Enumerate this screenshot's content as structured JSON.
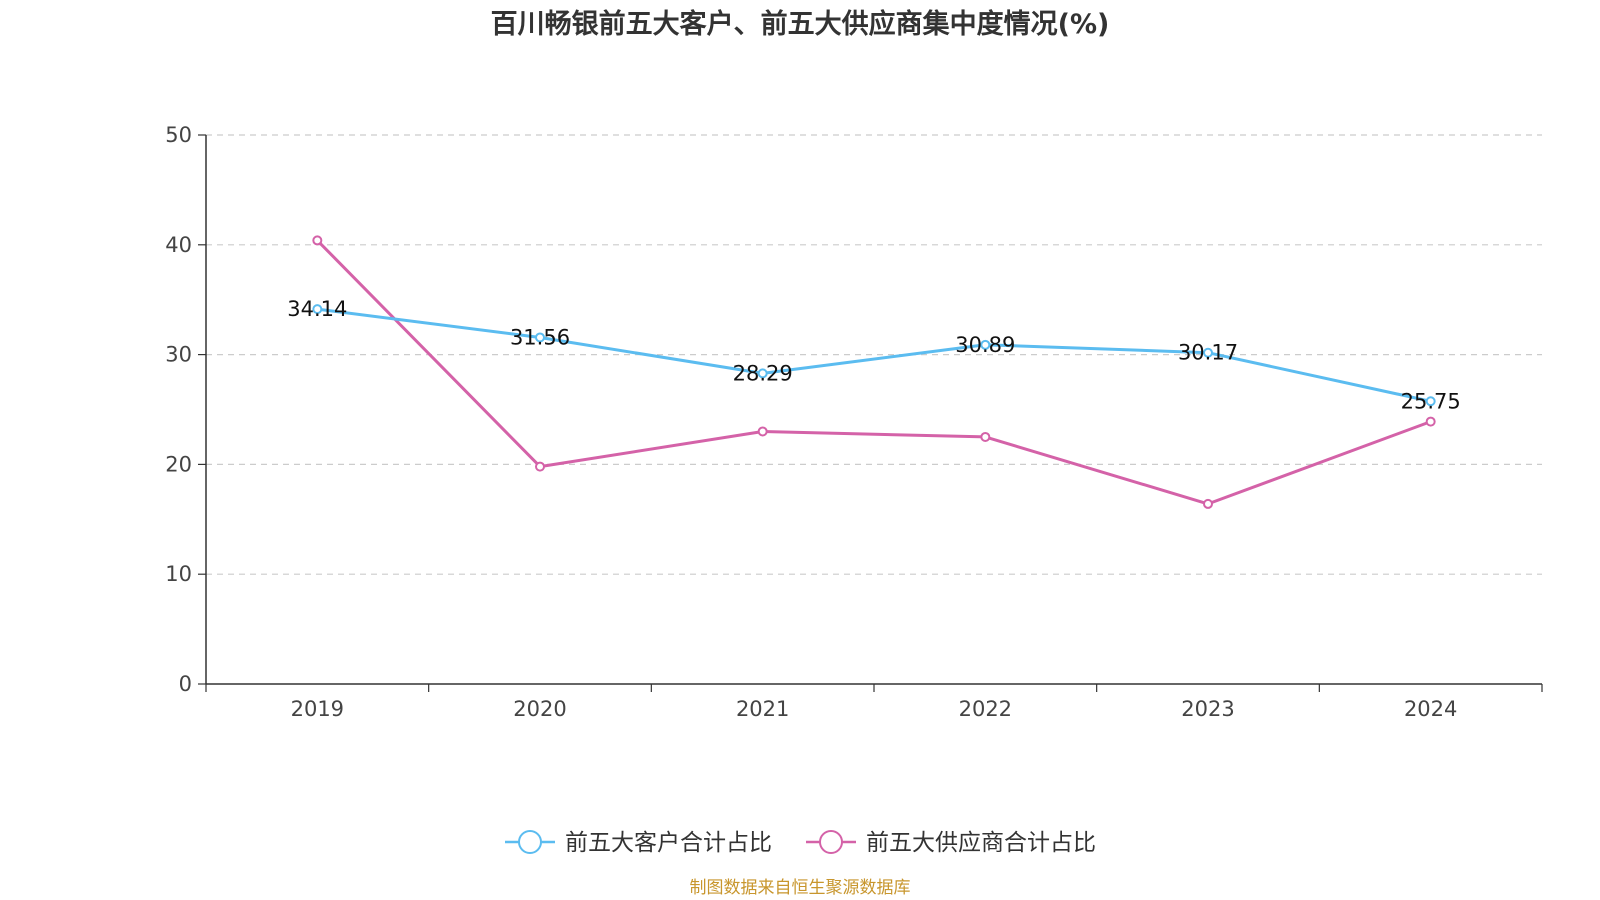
{
  "chart_data": {
    "type": "line",
    "title": "百川畅银前五大客户、前五大供应商集中度情况(%)",
    "xlabel": "",
    "ylabel": "",
    "categories": [
      "2019",
      "2020",
      "2021",
      "2022",
      "2023",
      "2024"
    ],
    "ylim": [
      0,
      50
    ],
    "yticks": [
      0,
      10,
      20,
      30,
      40,
      50
    ],
    "grid": true,
    "legend_position": "bottom-center",
    "series": [
      {
        "name": "前五大客户合计占比",
        "color": "#5bbcf0",
        "values": [
          34.14,
          31.56,
          28.29,
          30.89,
          30.17,
          25.75
        ],
        "labels": [
          "34.14",
          "31.56",
          "28.29",
          "30.89",
          "30.17",
          "25.75"
        ],
        "show_labels": true
      },
      {
        "name": "前五大供应商合计占比",
        "color": "#d462a8",
        "values": [
          40.4,
          19.8,
          23.0,
          22.5,
          16.4,
          23.9
        ],
        "show_labels": false
      }
    ]
  },
  "source_text": "制图数据来自恒生聚源数据库",
  "colors": {
    "axis": "#333333",
    "grid": "#cccccc",
    "source": "#c8962d",
    "tick_text": "#444444"
  }
}
